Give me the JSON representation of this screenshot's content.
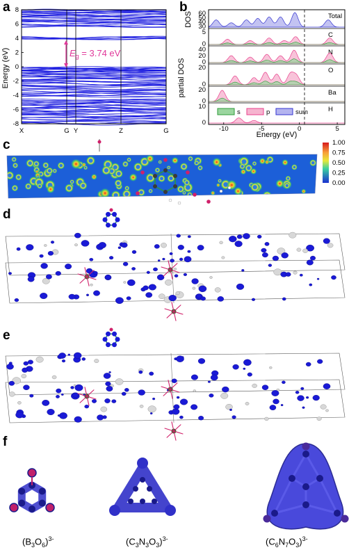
{
  "panel_labels": {
    "a": "a",
    "b": "b",
    "c": "c",
    "d": "d",
    "e": "e",
    "f": "f"
  },
  "panel_a": {
    "ylabel": "Energy (eV)",
    "yticks": [
      "8",
      "6",
      "4",
      "2",
      "0",
      "-2",
      "-4",
      "-6",
      "-8"
    ],
    "xticks": [
      "X",
      "G",
      "Y",
      "Z",
      "G"
    ],
    "gap_symbol": "E",
    "gap_subscript": "g",
    "gap_value": " = 3.74 eV",
    "colors": {
      "bands": "#1f1fe0",
      "annotation": "#e0389a"
    }
  },
  "panel_b": {
    "total_label": "DOS",
    "partial_label": "partial DOS",
    "xlabel": "Energy (eV)",
    "xticks": [
      "-10",
      "-5",
      "0",
      "5"
    ],
    "total_yticks": [
      "60",
      "50",
      "40",
      "30"
    ],
    "rows": [
      {
        "name": "Total",
        "yticks": [
          "60",
          "50",
          "40",
          "30"
        ]
      },
      {
        "name": "C",
        "yticks": [
          "5",
          "0"
        ]
      },
      {
        "name": "N",
        "yticks": [
          "40",
          "20",
          "0"
        ]
      },
      {
        "name": "O",
        "yticks": [
          "20",
          "0"
        ]
      },
      {
        "name": "Ba",
        "yticks": [
          "20",
          "0"
        ]
      },
      {
        "name": "H",
        "yticks": [
          "10",
          "0"
        ]
      }
    ],
    "legend": [
      "s",
      "p",
      "sum"
    ],
    "colors": {
      "s": "#2e9a3a",
      "p": "#e8408c",
      "sum": "#3434d0"
    }
  },
  "panel_c": {
    "colorbar_ticks": [
      "1.00",
      "0.75",
      "0.50",
      "0.25",
      "0.00"
    ]
  },
  "panel_f": {
    "ions": [
      {
        "pre": "(B",
        "s1": "3",
        "mid": "O",
        "s2": "6",
        "post": ")",
        "charge": "3-"
      },
      {
        "pre": "(C",
        "s1": "3",
        "mid": "N",
        "s2": "3",
        "mid2": "O",
        "s3": "3",
        "post": ")",
        "charge": "3-"
      },
      {
        "pre": "(C",
        "s1": "6",
        "mid": "N",
        "s2": "7",
        "mid2": "O",
        "s3": "3",
        "post": ")",
        "charge": "3-"
      }
    ]
  }
}
